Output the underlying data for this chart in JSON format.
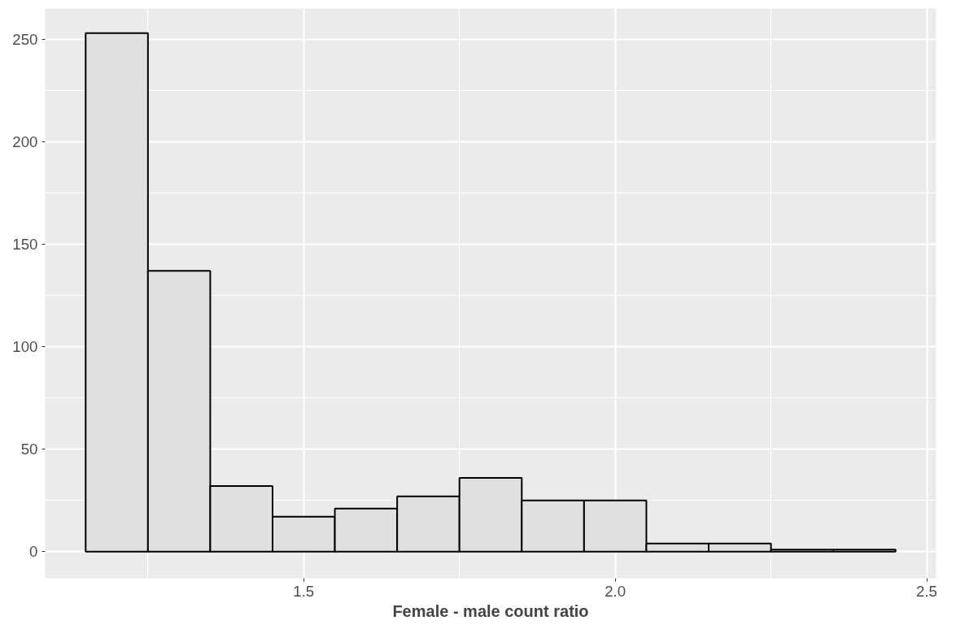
{
  "chart_data": {
    "type": "histogram",
    "xlabel": "Female - male count ratio",
    "bins": [
      1.15,
      1.25,
      1.35,
      1.45,
      1.55,
      1.65,
      1.75,
      1.85,
      1.95,
      2.05,
      2.15,
      2.25,
      2.35,
      2.45
    ],
    "values": [
      253,
      137,
      32,
      17,
      21,
      27,
      36,
      25,
      25,
      4,
      4,
      1,
      1
    ],
    "color": "#e0e0e0",
    "xlim": [
      1.085,
      2.515
    ],
    "xticks": [
      1.5,
      {
        "value": 2,
        "label": "2.0"
      },
      2.5
    ],
    "ylim": [
      -13,
      265
    ],
    "yticks": [
      0,
      50,
      100,
      150,
      200,
      250
    ],
    "grid": true
  }
}
